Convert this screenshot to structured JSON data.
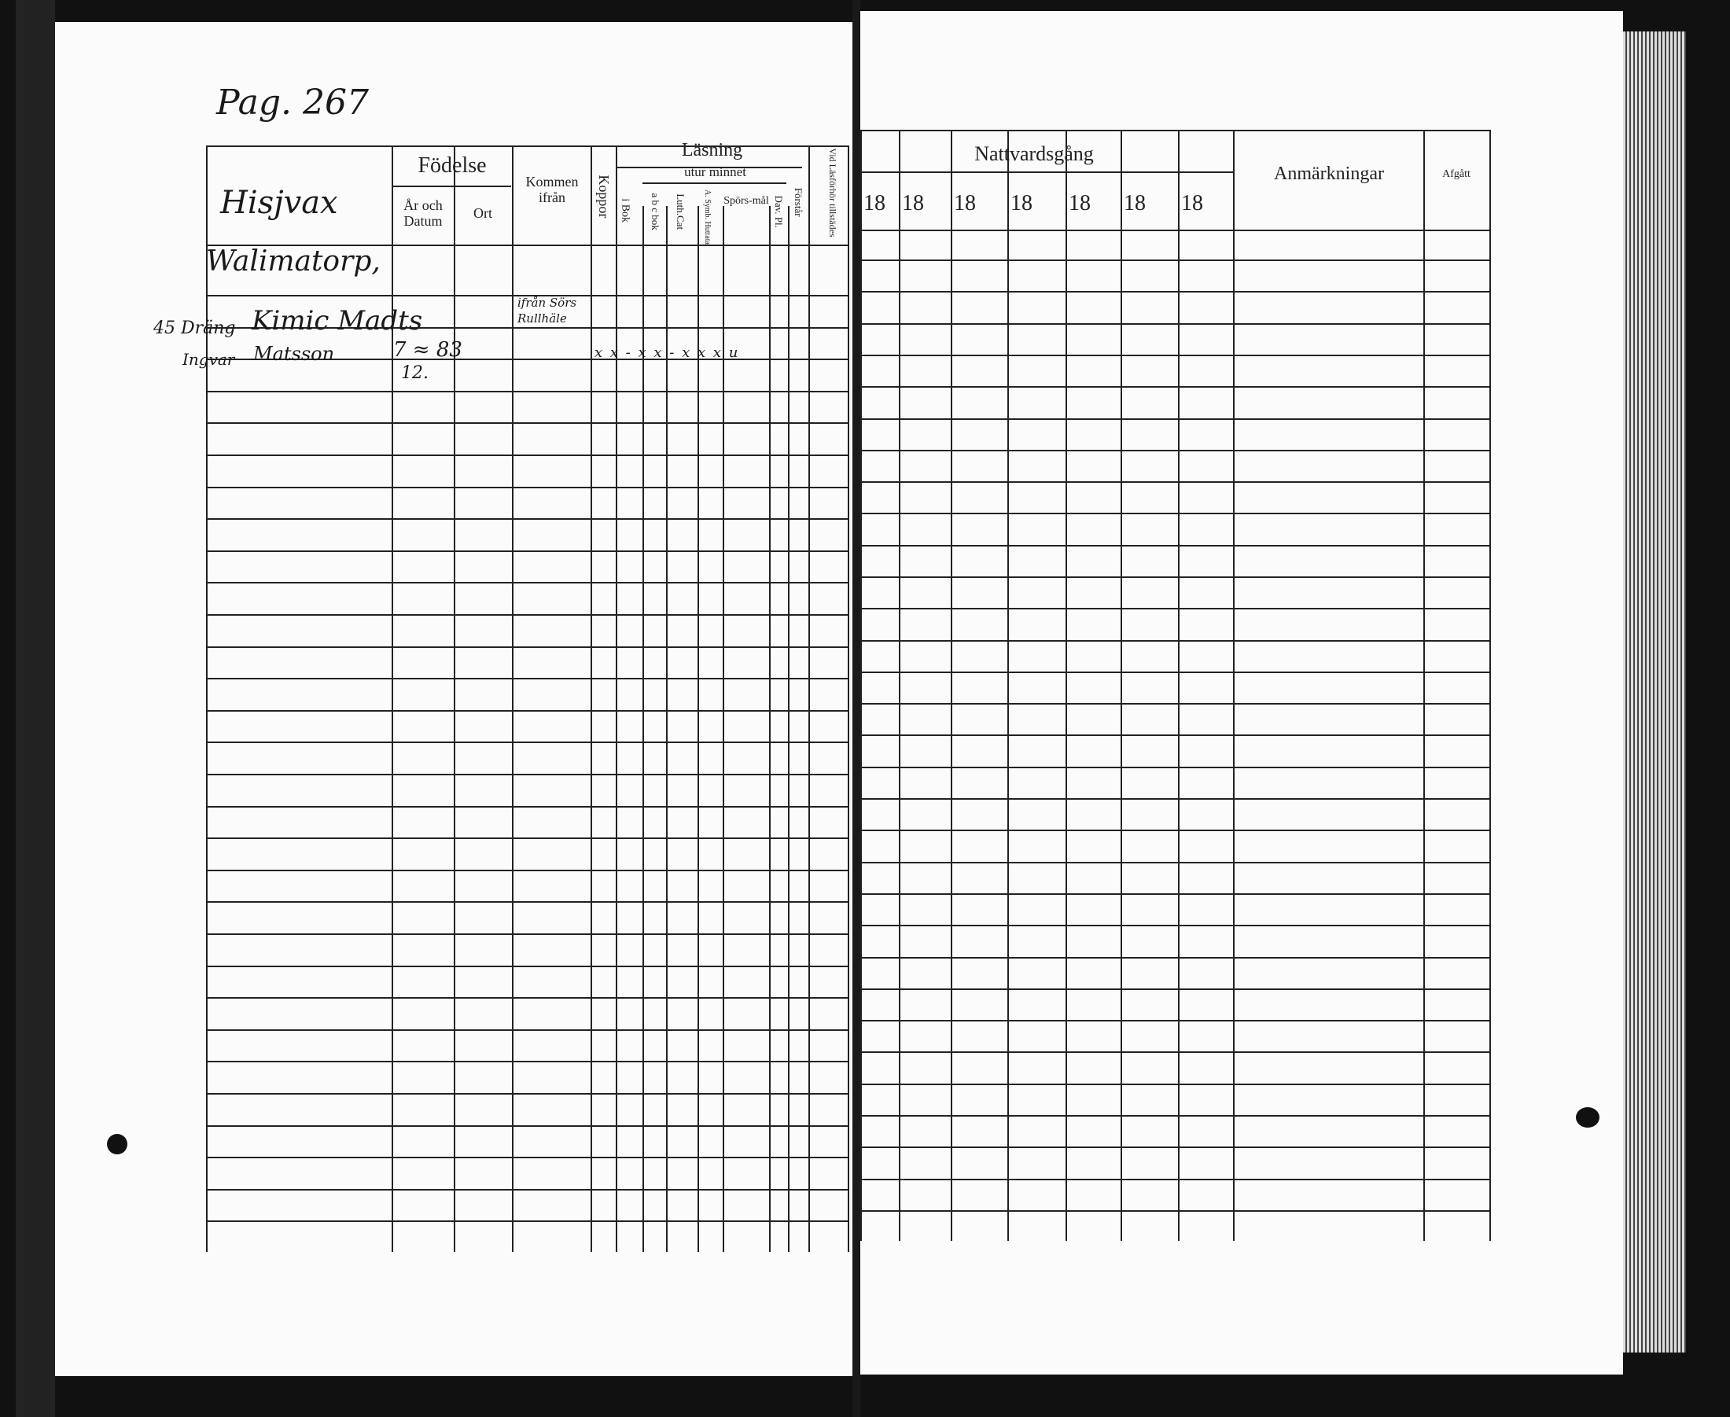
{
  "left_page": {
    "page_note": "Pag. 267",
    "headers": {
      "fodelse": "Födelse",
      "ar_och_datum": "År och Datum",
      "ort": "Ort",
      "kommen_ifran": "Kommen ifrån",
      "koppor": "Koppor",
      "lasning": "Läsning",
      "utur_minnet": "utur minnet",
      "i_bok": "i Bok",
      "abc_bok": "a b c bok",
      "luth_cat": "Luth.Cat",
      "a_symb": "A. Symb. Huttata",
      "sporsmal": "Spörs-mål",
      "dav_pl": "Dav. Pl.",
      "forstar": "Förstår",
      "lasforhor": "Vid Läsförhör tillstädes"
    },
    "handwritten": {
      "parish": "Hisjvax",
      "farm": "Walimatorp,",
      "margin_number": "45 Dräng",
      "margin_line2": "Ingvar",
      "name_line1": "Kimic Madts",
      "name_line2": "Matsson",
      "birth_year": "7 ≈ 83",
      "birth_day": "12.",
      "came_from_line1": "ifrån Sörs",
      "came_from_line2": "Rullhäle",
      "reading_marks": "x x  -  x x  - x x   x  u"
    }
  },
  "right_page": {
    "headers": {
      "nattvardsgang": "Nattvardsgång",
      "years": [
        "18",
        "18",
        "18",
        "18",
        "18",
        "18",
        "18"
      ],
      "anmarkningar": "Anmärkningar",
      "afgatt": "Afgått"
    }
  }
}
